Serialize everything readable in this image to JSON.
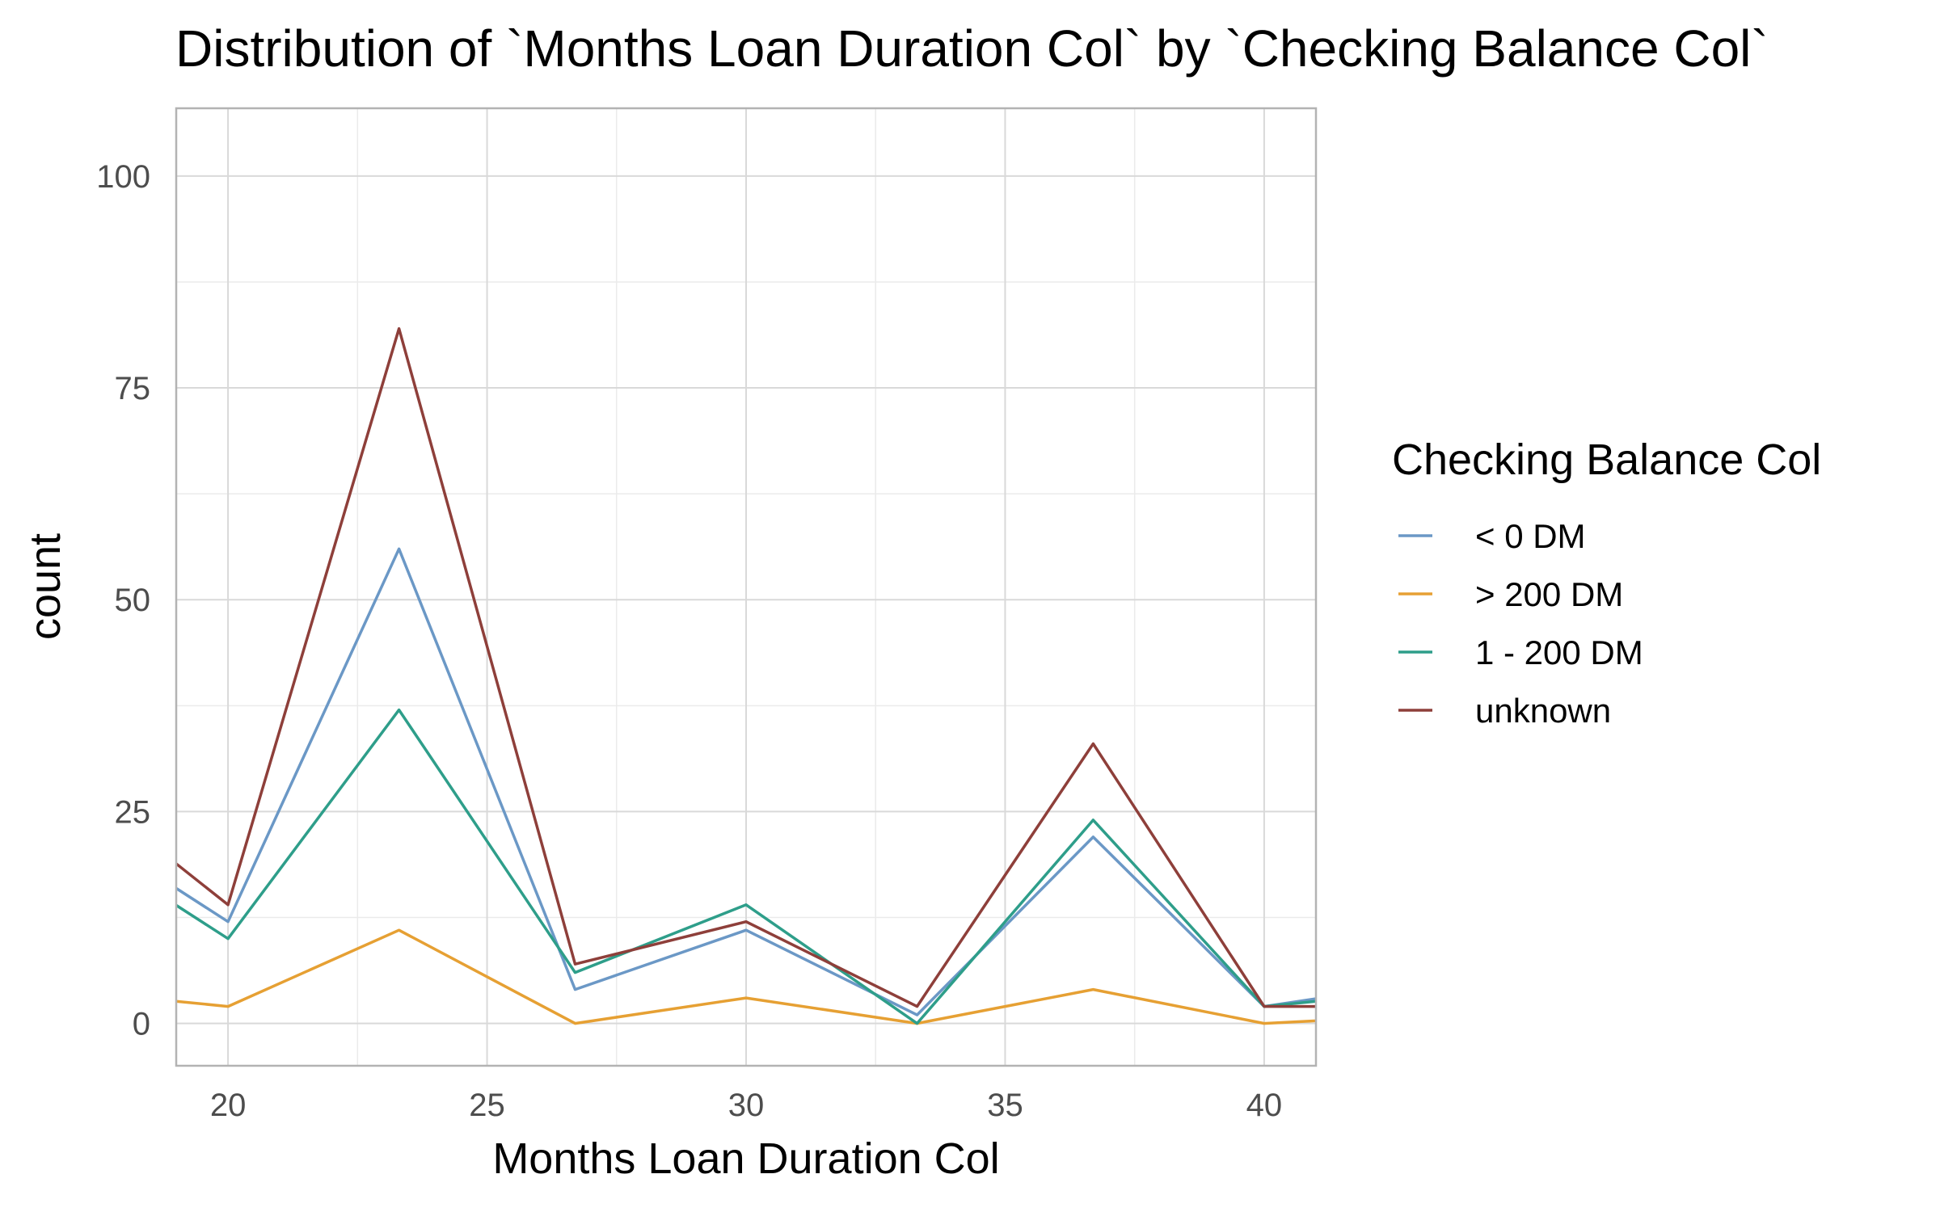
{
  "chart_data": {
    "type": "line",
    "title": "Distribution of `Months Loan Duration Col` by `Checking Balance Col`",
    "xlabel": "Months Loan Duration Col",
    "ylabel": "count",
    "xlim": [
      19,
      41
    ],
    "ylim": [
      -5,
      108
    ],
    "x_ticks": [
      20,
      25,
      30,
      35,
      40
    ],
    "y_ticks": [
      0,
      25,
      50,
      75,
      100
    ],
    "grid": true,
    "legend": {
      "title": "Checking Balance Col",
      "placement": "right"
    },
    "series": [
      {
        "name": "< 0 DM",
        "color": "#6b98c6",
        "x": [
          16.7,
          20,
          23.3,
          26.7,
          30,
          33.3,
          36.7,
          40,
          43.3
        ],
        "y": [
          25,
          12,
          56,
          4,
          11,
          1,
          22,
          2,
          5
        ]
      },
      {
        "name": "> 200 DM",
        "color": "#e6a033",
        "x": [
          16.7,
          20,
          23.3,
          26.7,
          30,
          33.3,
          36.7,
          40,
          43.3
        ],
        "y": [
          4,
          2,
          11,
          0,
          3,
          0,
          4,
          0,
          1
        ]
      },
      {
        "name": "1 - 200 DM",
        "color": "#2e9e8a",
        "x": [
          16.7,
          20,
          23.3,
          26.7,
          30,
          33.3,
          36.7,
          40,
          43.3
        ],
        "y": [
          23,
          10,
          37,
          6,
          14,
          0,
          24,
          2,
          4
        ]
      },
      {
        "name": "unknown",
        "color": "#8e3f3a",
        "x": [
          16.7,
          20,
          23.3,
          26.7,
          30,
          33.3,
          36.7,
          40,
          43.3
        ],
        "y": [
          30,
          14,
          82,
          7,
          12,
          2,
          33,
          2,
          2
        ]
      }
    ]
  }
}
